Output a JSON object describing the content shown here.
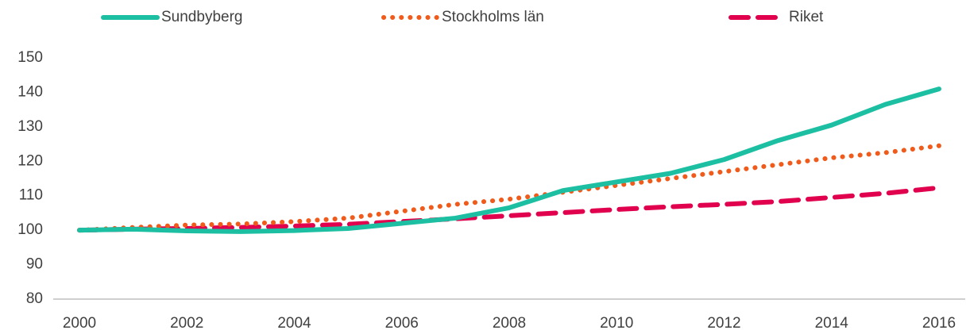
{
  "chart_data": {
    "type": "line",
    "x": [
      2000,
      2001,
      2002,
      2003,
      2004,
      2005,
      2006,
      2007,
      2008,
      2009,
      2010,
      2011,
      2012,
      2013,
      2014,
      2015,
      2016
    ],
    "series": [
      {
        "name": "Sundbyberg",
        "color": "#1dbfa3",
        "style": "solid",
        "values": [
          100,
          100.3,
          99.8,
          99.6,
          99.9,
          100.5,
          102,
          103.5,
          106.5,
          111.5,
          114,
          116.5,
          120.5,
          126,
          130.5,
          136.5,
          141
        ]
      },
      {
        "name": "Stockholms län",
        "color": "#f05a1a",
        "style": "dotted",
        "values": [
          100,
          100.8,
          101.5,
          101.8,
          102.5,
          103.5,
          105.5,
          107.5,
          109,
          111,
          113,
          115,
          117,
          119,
          121,
          122.5,
          124.5
        ]
      },
      {
        "name": "Riket",
        "color": "#e0004d",
        "style": "dashed",
        "values": [
          100,
          100.3,
          100.5,
          100.8,
          101.2,
          101.7,
          102.5,
          103.3,
          104.2,
          105.1,
          106,
          106.8,
          107.5,
          108.3,
          109.5,
          110.7,
          112.3
        ]
      }
    ],
    "xlim": [
      2000,
      2016
    ],
    "xticks": [
      2000,
      2002,
      2004,
      2006,
      2008,
      2010,
      2012,
      2014,
      2016
    ],
    "ylim": [
      80,
      150
    ],
    "yticks": [
      80,
      90,
      100,
      110,
      120,
      130,
      140,
      150
    ],
    "grid": false,
    "legend": "top"
  }
}
